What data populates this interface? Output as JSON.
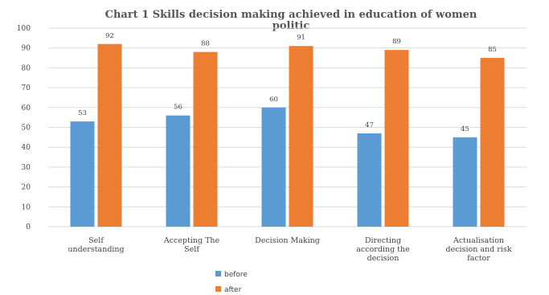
{
  "chart_data": {
    "type": "bar",
    "title_lines": [
      "Chart 1  Skills decision making achieved in education of women",
      "politic"
    ],
    "categories": [
      [
        "Self",
        "understanding"
      ],
      [
        "Accepting The",
        "Self"
      ],
      [
        "Decision Making"
      ],
      [
        "Directing",
        "according the",
        "decision"
      ],
      [
        "Actualisation",
        "decision and risk",
        "factor"
      ]
    ],
    "series": [
      {
        "name": "before",
        "color": "#5b9bd5",
        "values": [
          53,
          56,
          60,
          47,
          45
        ]
      },
      {
        "name": "after",
        "color": "#ed7d31",
        "values": [
          92,
          88,
          91,
          89,
          85
        ]
      }
    ],
    "ylim": [
      0,
      100
    ],
    "yticks": [
      0,
      10,
      20,
      30,
      40,
      50,
      60,
      70,
      80,
      90,
      100
    ],
    "grid": true,
    "legend_position": "bottom",
    "data_labels": true
  }
}
